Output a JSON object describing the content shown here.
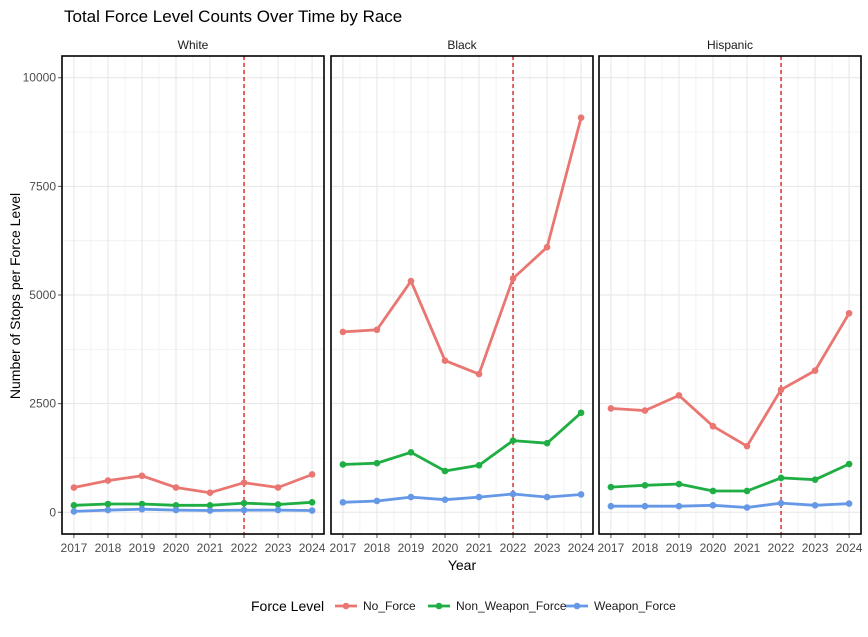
{
  "chart_data": {
    "type": "line",
    "title": "Total Force Level Counts Over Time by Race",
    "xlabel": "Year",
    "ylabel": "Number of Stops per Force Level",
    "x": [
      2017,
      2018,
      2019,
      2020,
      2021,
      2022,
      2023,
      2024
    ],
    "ylim": [
      -500,
      10500
    ],
    "yticks": [
      0,
      2500,
      5000,
      7500,
      10000
    ],
    "ytick_labels": [
      "0",
      "2500",
      "5000",
      "7500",
      "10000"
    ],
    "vline_x": 2022,
    "vline_color": "#cc0000",
    "grid": true,
    "legend": {
      "title": "Force Level",
      "placement": "bottom"
    },
    "series_styles": [
      {
        "name": "No_Force",
        "color": "#ea7672"
      },
      {
        "name": "Non_Weapon_Force",
        "color": "#1fae43"
      },
      {
        "name": "Weapon_Force",
        "color": "#6598e6"
      }
    ],
    "facets": [
      {
        "label": "White",
        "series": [
          {
            "name": "No_Force",
            "values": [
              570,
              730,
              840,
              570,
              450,
              680,
              570,
              870
            ]
          },
          {
            "name": "Non_Weapon_Force",
            "values": [
              160,
              190,
              190,
              160,
              160,
              210,
              180,
              230
            ]
          },
          {
            "name": "Weapon_Force",
            "values": [
              20,
              50,
              70,
              50,
              40,
              50,
              50,
              40
            ]
          }
        ]
      },
      {
        "label": "Black",
        "series": [
          {
            "name": "No_Force",
            "values": [
              4150,
              4200,
              5320,
              3490,
              3180,
              5380,
              6100,
              9080
            ]
          },
          {
            "name": "Non_Weapon_Force",
            "values": [
              1100,
              1130,
              1380,
              950,
              1080,
              1650,
              1590,
              2290
            ]
          },
          {
            "name": "Weapon_Force",
            "values": [
              230,
              260,
              350,
              290,
              350,
              420,
              350,
              410
            ]
          }
        ]
      },
      {
        "label": "Hispanic",
        "series": [
          {
            "name": "No_Force",
            "values": [
              2390,
              2340,
              2690,
              1980,
              1520,
              2820,
              3260,
              4580
            ]
          },
          {
            "name": "Non_Weapon_Force",
            "values": [
              580,
              620,
              650,
              490,
              490,
              790,
              750,
              1110
            ]
          },
          {
            "name": "Weapon_Force",
            "values": [
              140,
              140,
              140,
              160,
              110,
              210,
              160,
              200
            ]
          }
        ]
      }
    ]
  }
}
